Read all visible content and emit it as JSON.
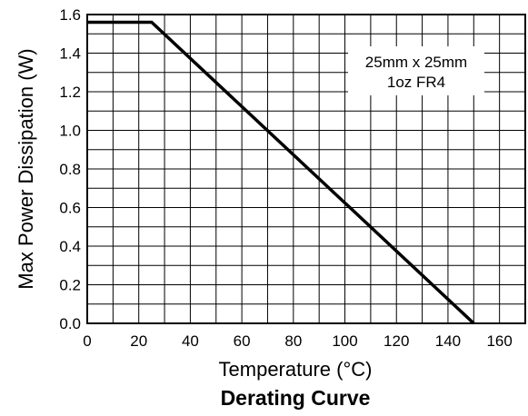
{
  "chart_data": {
    "type": "line",
    "caption": "Derating Curve",
    "title": "",
    "xlabel": "Temperature (°C)",
    "ylabel": "Max Power Dissipation (W)",
    "xlim": [
      0,
      170
    ],
    "ylim": [
      0.0,
      1.6
    ],
    "x_ticks": [
      "0",
      "20",
      "40",
      "60",
      "80",
      "100",
      "120",
      "140",
      "160"
    ],
    "y_ticks": [
      "0.0",
      "0.2",
      "0.4",
      "0.6",
      "0.8",
      "1.0",
      "1.2",
      "1.4",
      "1.6"
    ],
    "grid": true,
    "annotation": [
      "25mm x 25mm",
      "1oz FR4"
    ],
    "series": [
      {
        "x": [
          0,
          25,
          150
        ],
        "y": [
          1.56,
          1.56,
          0.0
        ]
      }
    ]
  }
}
